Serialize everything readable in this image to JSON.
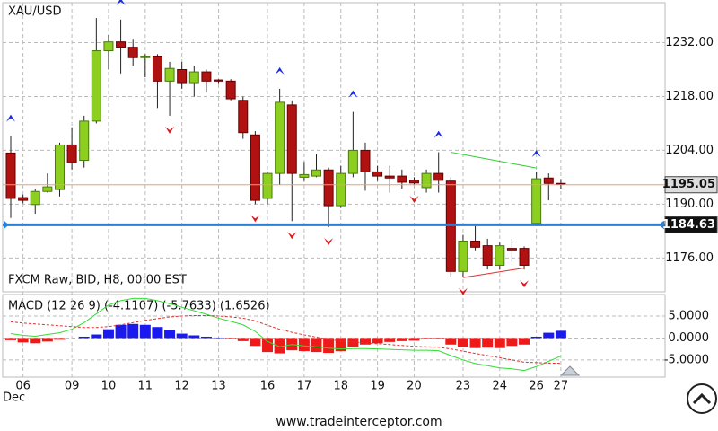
{
  "chart_data": [
    {
      "type": "candlestick",
      "title": "XAU/USD",
      "subtitle": "FXCM Raw, BID, H8, 00:00 EST",
      "categories": [
        null,
        "06",
        null,
        null,
        null,
        "09",
        null,
        null,
        "10",
        null,
        null,
        "11",
        null,
        null,
        "12",
        null,
        null,
        "13",
        null,
        null,
        null,
        "16",
        null,
        null,
        "17",
        null,
        null,
        "18",
        null,
        null,
        "19",
        null,
        null,
        "20",
        null,
        null,
        null,
        "23",
        null,
        null,
        "24",
        null,
        null,
        "26",
        null,
        "27"
      ],
      "month_label": "Dec",
      "open": [
        1203.3,
        1191.7,
        1189.9,
        1193.3,
        1193.8,
        1205.4,
        1201.4,
        1211.6,
        1229.9,
        1232.2,
        1230.8,
        1228.1,
        1228.5,
        1222,
        1225,
        1221.6,
        1224.4,
        1222.3,
        1222,
        1217,
        1208,
        1191.5,
        1198,
        1215.8,
        1197,
        1197.3,
        1198.9,
        1189.6,
        1198,
        1204,
        1198.4,
        1197.3,
        1197.3,
        1196.2,
        1194.3,
        1198,
        1196,
        1172.5,
        1180.4,
        1179.2,
        1174.1,
        1178.5,
        1178.5,
        1185,
        1196.8,
        1195.4
      ],
      "high": [
        1207.7,
        1192.5,
        1194,
        1198,
        1206,
        1210,
        1213,
        1238.4,
        1234,
        1238,
        1233,
        1229,
        1229,
        1227,
        1227,
        1226,
        1225,
        1222.5,
        1222.5,
        1218,
        1209,
        1198.5,
        1220,
        1217,
        1201,
        1203,
        1199.5,
        1200,
        1214,
        1206,
        1200,
        1200,
        1199,
        1197,
        1199,
        1203.5,
        1197,
        1182,
        1184.6,
        1181,
        1180,
        1181,
        1179,
        1198.5,
        1198,
        1196.5
      ],
      "low": [
        1186.4,
        1190.2,
        1187.5,
        1193,
        1192,
        1199,
        1199.5,
        1211,
        1225,
        1224,
        1226,
        1223,
        1215,
        1213,
        1220,
        1218,
        1219,
        1221.5,
        1217,
        1207,
        1190,
        1190,
        1195,
        1185.6,
        1196,
        1197,
        1184,
        1189,
        1197,
        1193.5,
        1196,
        1193,
        1194,
        1195,
        1193,
        1193,
        1171,
        1171,
        1178,
        1173,
        1173,
        1175,
        1173,
        1184.5,
        1191,
        1194
      ],
      "close": [
        1191.5,
        1191,
        1193.3,
        1194.5,
        1205.4,
        1200.8,
        1211.6,
        1229.9,
        1232.2,
        1230.8,
        1228.1,
        1228.5,
        1222,
        1225.3,
        1221.6,
        1224.4,
        1222,
        1222,
        1217.4,
        1208.6,
        1191,
        1198,
        1216.5,
        1198,
        1197.7,
        1198.9,
        1189.6,
        1198,
        1204,
        1198.4,
        1197.3,
        1196.8,
        1195.7,
        1195.5,
        1198,
        1196.2,
        1172.5,
        1180.4,
        1178.8,
        1174.1,
        1179.2,
        1178.1,
        1174.1,
        1196.6,
        1195.4,
        1195.2
      ],
      "up_color": "#8ccf1e",
      "down_color": "#b01212",
      "fractal_up": [
        0,
        9,
        22,
        28,
        35,
        43
      ],
      "fractal_up_color": "#1a2ee0",
      "fractal_down": [
        13,
        20,
        23,
        26,
        33,
        37,
        42
      ],
      "fractal_down_color": "#e01818",
      "trendlines": [
        {
          "color": "#33cc33",
          "x": [
            36,
            43
          ],
          "values": [
            1203.5,
            1199.4
          ]
        },
        {
          "color": "#e03030",
          "x": [
            37,
            42
          ],
          "values": [
            1170.9,
            1173.4
          ]
        }
      ],
      "hlines": [
        {
          "value": 1195.05,
          "color": "#e8a070"
        },
        {
          "value": 1184.63,
          "color": "#2a7fd4"
        }
      ],
      "ylim": [
        1167.2,
        1242.4
      ],
      "yticks": [
        {
          "value": 1232,
          "label": "1232.00"
        },
        {
          "value": 1218,
          "label": "1218.00"
        },
        {
          "value": 1204,
          "label": "1204.00"
        },
        {
          "value": 1190,
          "label": "1190.00"
        },
        {
          "value": 1176,
          "label": "1176.00"
        }
      ],
      "grid": true
    },
    {
      "type": "macd",
      "title": "MACD (12 26 9) (-4.1107) (-5.7633) (1.6526)",
      "histogram": [
        -0.5,
        -1,
        -1.2,
        -0.8,
        -0.4,
        0,
        0.3,
        0.8,
        2,
        3,
        3.2,
        3,
        2.5,
        1.8,
        1,
        0.6,
        0.3,
        0.1,
        -0.3,
        -0.7,
        -1.8,
        -3.2,
        -3.5,
        -2.8,
        -3,
        -3.2,
        -3.4,
        -3,
        -2,
        -1.5,
        -1.2,
        -0.9,
        -0.7,
        -0.6,
        -0.3,
        -0.3,
        -1.5,
        -2,
        -2.3,
        -2.2,
        -2.3,
        -1.8,
        -1.5,
        0.3,
        1.2,
        1.6526
      ],
      "macd": [
        1,
        0.6,
        0.4,
        0.8,
        1.2,
        2,
        3.5,
        5.5,
        7.5,
        8.5,
        9,
        9,
        8.5,
        7.8,
        7,
        6.2,
        5.4,
        4.5,
        3.8,
        3,
        1.5,
        -0.8,
        -2,
        -1.5,
        -1.8,
        -2,
        -2.3,
        -2.5,
        -2.4,
        -2.4,
        -2.5,
        -2.6,
        -2.7,
        -2.8,
        -2.8,
        -2.9,
        -4,
        -5,
        -5.8,
        -6.3,
        -6.8,
        -7,
        -7.4,
        -6.5,
        -5.3,
        -4.1107
      ],
      "signal": [
        3.7,
        3.4,
        3.2,
        3,
        2.8,
        2.6,
        2.4,
        2.4,
        2.6,
        3,
        3.5,
        4,
        4.4,
        4.8,
        5,
        5.1,
        5.1,
        5,
        4.8,
        4.5,
        3.9,
        2.9,
        2,
        1.3,
        0.7,
        0.2,
        -0.3,
        -0.7,
        -0.9,
        -1.1,
        -1.3,
        -1.5,
        -1.7,
        -1.9,
        -2,
        -2.1,
        -2.5,
        -3,
        -3.5,
        -4,
        -4.5,
        -5,
        -5.5,
        -5.6,
        -5.7,
        -5.7633
      ],
      "pos_color": "#1a1aee",
      "neg_color": "#ee1a1a",
      "macd_color": "#33dd33",
      "signal_color": "#e03030",
      "ylim": [
        -8.9,
        9.9
      ],
      "yticks": [
        {
          "value": 5,
          "label": "5.0000"
        },
        {
          "value": 0,
          "label": "0.0000"
        },
        {
          "value": -5,
          "label": "-5.0000"
        }
      ],
      "grid": true
    }
  ],
  "footer": "www.tradeinterceptor.com"
}
